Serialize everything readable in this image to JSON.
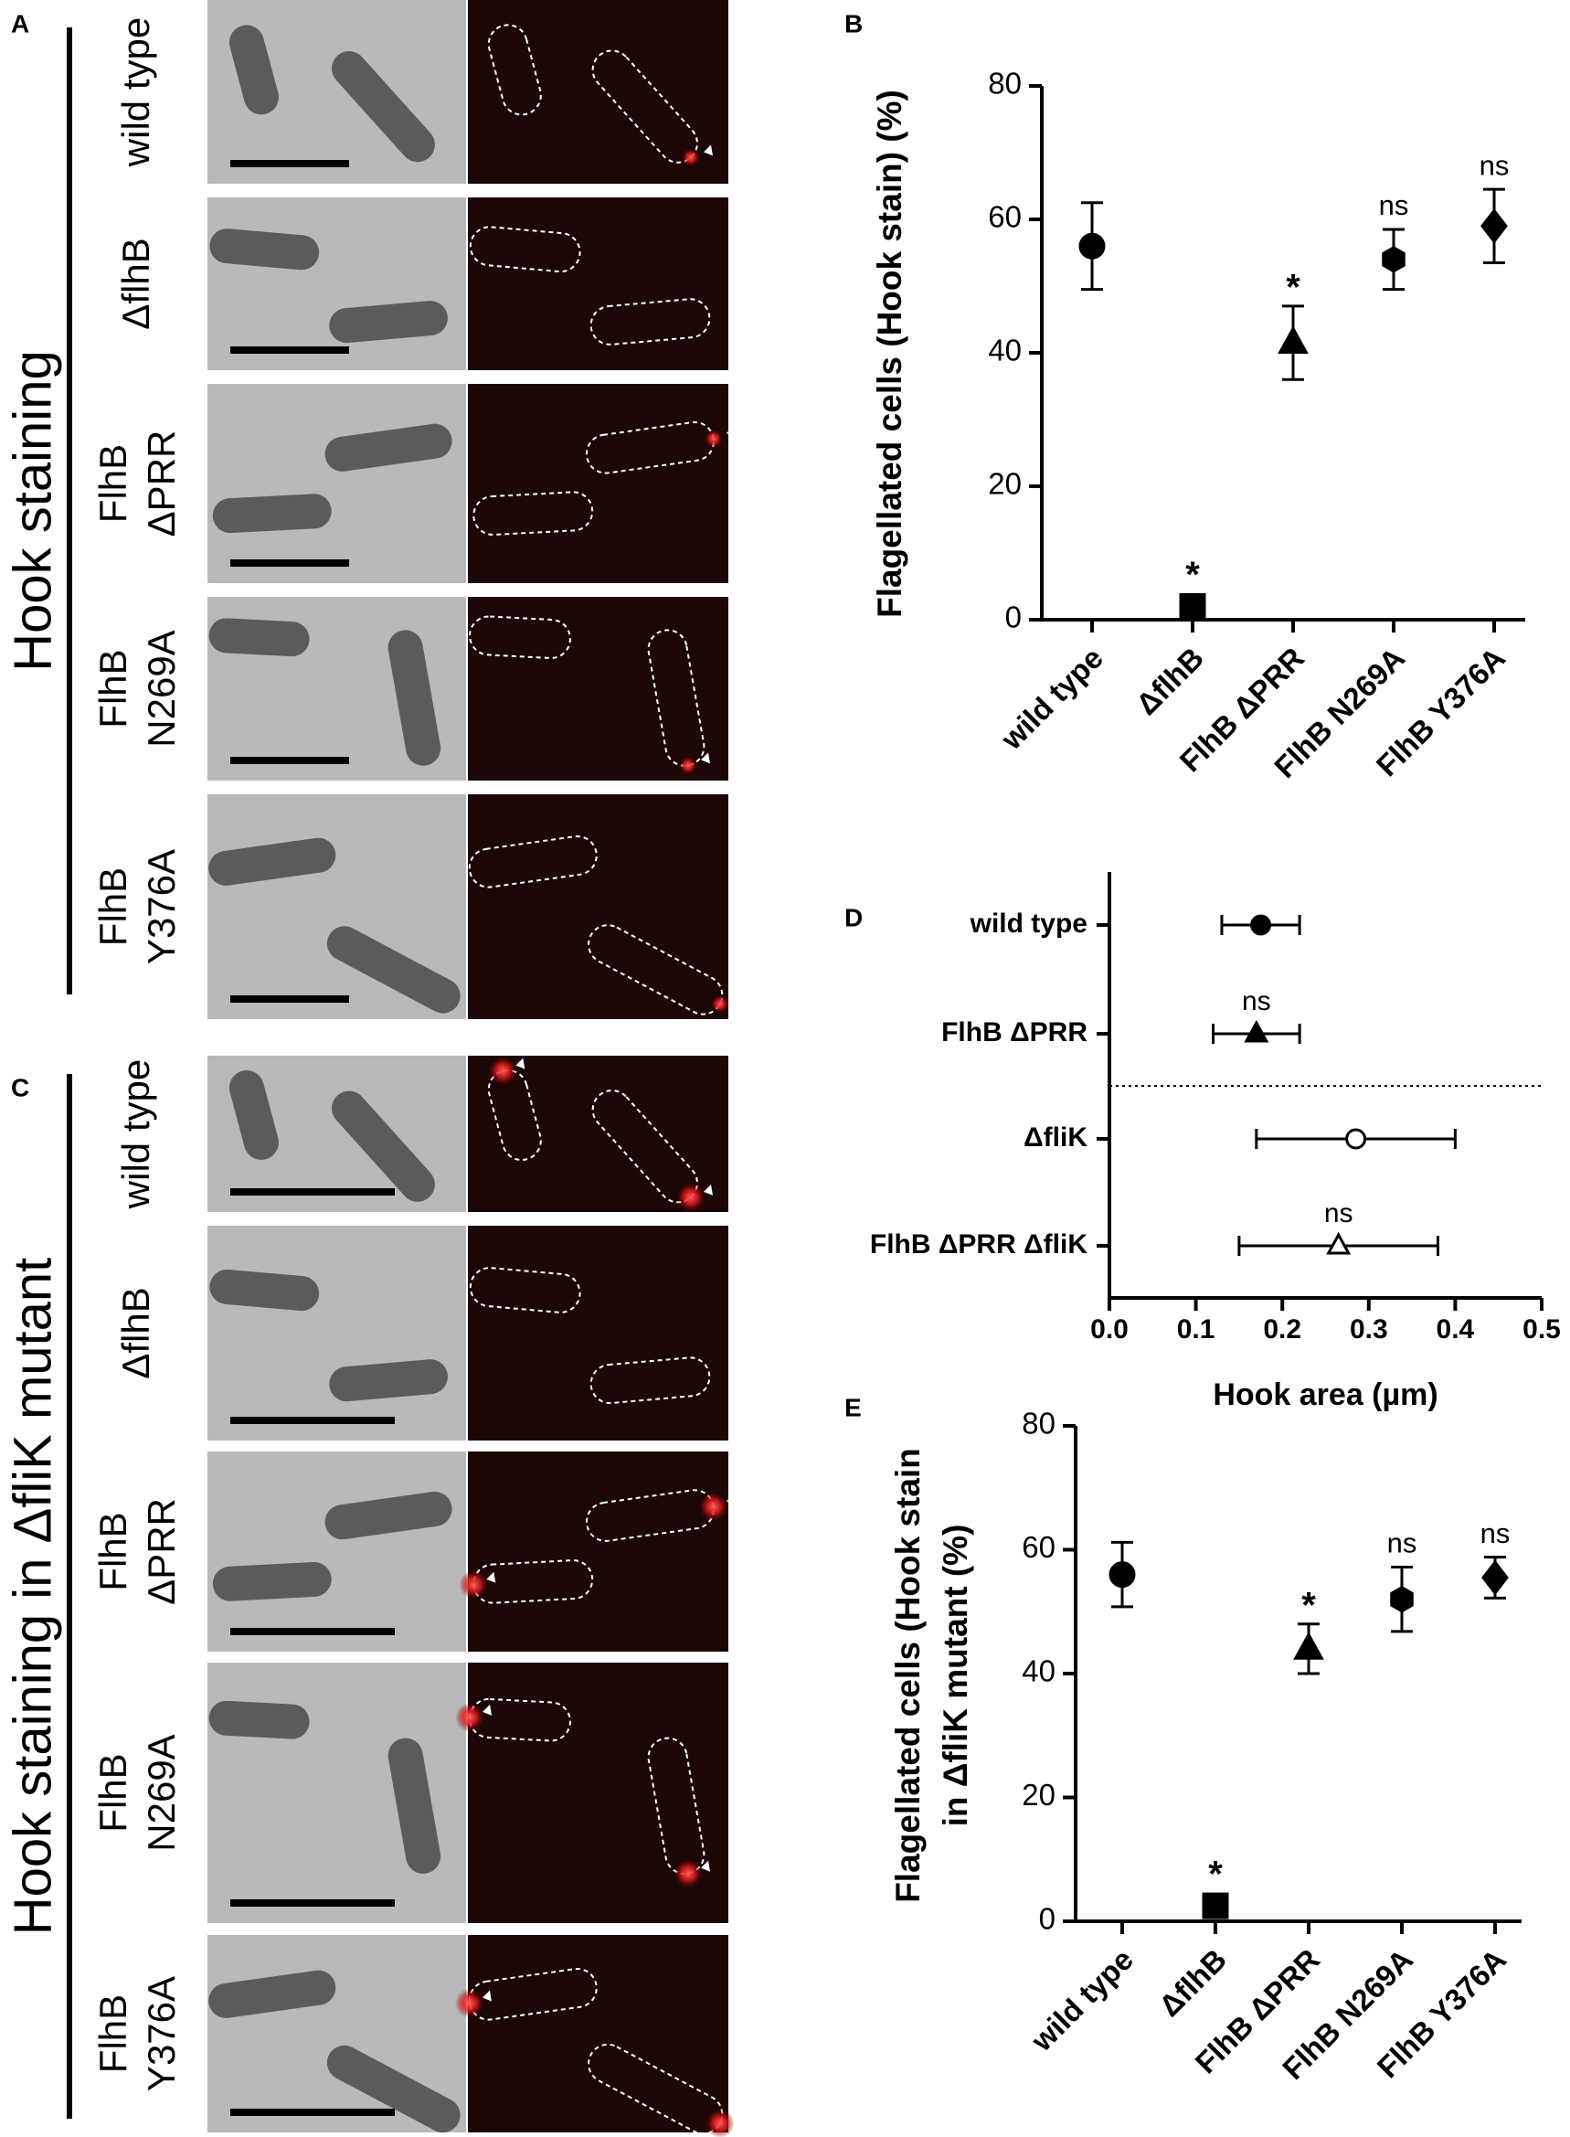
{
  "panel_labels": [
    "A",
    "B",
    "C",
    "D",
    "E"
  ],
  "groups": [
    {
      "label": "Hook staining",
      "rows": [
        [
          "wild type"
        ],
        [
          "ΔflhB"
        ],
        [
          "FlhB",
          "ΔPRR"
        ],
        [
          "FlhB",
          "N269A"
        ],
        [
          "FlhB",
          "Y376A"
        ]
      ]
    },
    {
      "label": "Hook staining in ΔfliK mutant",
      "rows": [
        [
          "wild type"
        ],
        [
          "ΔflhB"
        ],
        [
          "FlhB",
          "ΔPRR"
        ],
        [
          "FlhB",
          "N269A"
        ],
        [
          "FlhB",
          "Y376A"
        ]
      ]
    }
  ],
  "chart_data": [
    {
      "type": "dotplot",
      "ylabel": [
        "Flagellated cells (Hook stain) (%)"
      ],
      "categories": [
        "wild type",
        "ΔflhB",
        "FlhB ΔPRR",
        "FlhB N269A",
        "FlhB Y376A"
      ],
      "values": [
        56,
        2,
        41.5,
        54,
        59
      ],
      "errors": [
        6.5,
        0,
        5.5,
        4.5,
        5.5
      ],
      "annotations": [
        null,
        "*",
        "*",
        "ns",
        "ns"
      ],
      "markers": [
        "circle",
        "square",
        "triangle",
        "hexagon",
        "diamond"
      ],
      "color": "#000000",
      "ylim": [
        0,
        80
      ],
      "yticks": [
        0,
        20,
        40,
        60,
        80
      ]
    },
    {
      "type": "hdotplot",
      "xlabel": "Hook area (µm)",
      "categories": [
        "wild type",
        "FlhB ΔPRR",
        "ΔfliK",
        "FlhB ΔPRR ΔfliK"
      ],
      "values": [
        0.175,
        0.17,
        0.285,
        0.265
      ],
      "errors": [
        0.045,
        0.05,
        0.115,
        0.115
      ],
      "annotations": [
        null,
        "ns",
        null,
        "ns"
      ],
      "markers": [
        "circle",
        "triangle",
        "circle",
        "triangle"
      ],
      "filled": [
        true,
        true,
        false,
        false
      ],
      "color": "#000000",
      "xlim": [
        0,
        0.5
      ],
      "xticks": [
        {
          "value": 0,
          "label": "0.0"
        },
        0.1,
        0.2,
        0.3,
        0.4,
        0.5
      ]
    },
    {
      "type": "dotplot",
      "ylabel": [
        "Flagellated cells (Hook stain",
        "in ΔfliK mutant (%)"
      ],
      "categories": [
        "wild type",
        "ΔflhB",
        "FlhB ΔPRR",
        "FlhB N269A",
        "FlhB Y376A"
      ],
      "values": [
        56,
        2.5,
        44,
        52,
        55.5
      ],
      "errors": [
        5.2,
        0,
        4,
        5.2,
        3.3
      ],
      "annotations": [
        null,
        "*",
        "*",
        "ns",
        "ns"
      ],
      "markers": [
        "circle",
        "square",
        "triangle",
        "hexagon",
        "diamond"
      ],
      "color": "#000000",
      "ylim": [
        0,
        80
      ],
      "yticks": [
        0,
        20,
        40,
        60,
        80
      ]
    }
  ]
}
